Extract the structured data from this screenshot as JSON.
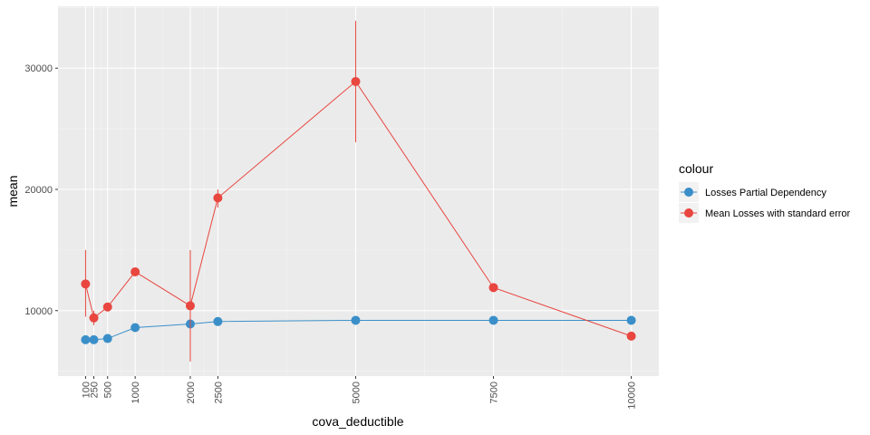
{
  "chart_data": {
    "type": "line",
    "xlabel": "cova_deductible",
    "ylabel": "mean",
    "xlim": [
      -400,
      10500
    ],
    "ylim": [
      4600,
      35100
    ],
    "x_ticks": [
      100,
      250,
      500,
      1000,
      2000,
      2500,
      5000,
      7500,
      10000
    ],
    "y_ticks": [
      10000,
      20000,
      30000
    ],
    "legend": {
      "title": "colour",
      "position": "right"
    },
    "grid": true,
    "series": [
      {
        "name": "Losses Partial Dependency",
        "color": "#3a8fc9",
        "points": [
          {
            "x": 100,
            "y": 7600
          },
          {
            "x": 250,
            "y": 7600
          },
          {
            "x": 500,
            "y": 7700
          },
          {
            "x": 1000,
            "y": 8600
          },
          {
            "x": 2000,
            "y": 8900
          },
          {
            "x": 2500,
            "y": 9100
          },
          {
            "x": 5000,
            "y": 9200
          },
          {
            "x": 7500,
            "y": 9200
          },
          {
            "x": 10000,
            "y": 9200
          }
        ]
      },
      {
        "name": "Mean Losses with standard error",
        "color": "#e8463f",
        "points": [
          {
            "x": 100,
            "y": 12200,
            "ymin": 9500,
            "ymax": 15000
          },
          {
            "x": 250,
            "y": 9400,
            "ymin": 8800,
            "ymax": 10000
          },
          {
            "x": 500,
            "y": 10300,
            "ymin": 10100,
            "ymax": 10500
          },
          {
            "x": 1000,
            "y": 13200,
            "ymin": 13000,
            "ymax": 13400
          },
          {
            "x": 2000,
            "y": 10400,
            "ymin": 5800,
            "ymax": 15000
          },
          {
            "x": 2500,
            "y": 19300,
            "ymin": 18500,
            "ymax": 20000
          },
          {
            "x": 5000,
            "y": 28900,
            "ymin": 23900,
            "ymax": 33900
          },
          {
            "x": 7500,
            "y": 11900,
            "ymin": 11700,
            "ymax": 12100
          },
          {
            "x": 10000,
            "y": 7900,
            "ymin": 7700,
            "ymax": 8100
          }
        ]
      }
    ]
  }
}
